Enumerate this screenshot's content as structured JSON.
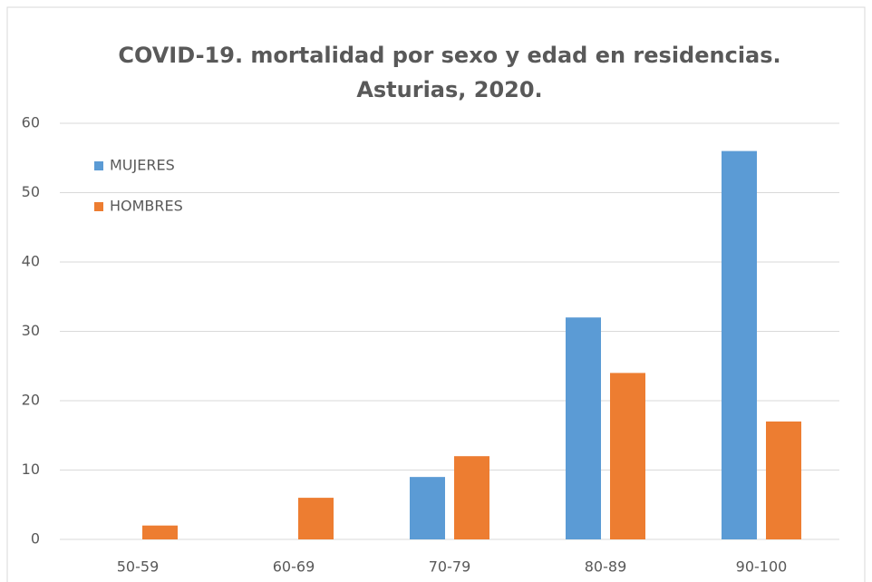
{
  "chart_data": {
    "type": "bar",
    "title": [
      "COVID-19. mortalidad por sexo y edad en residencias.",
      "Asturias, 2020."
    ],
    "categories": [
      "50-59",
      "60-69",
      "70-79",
      "80-89",
      "90-100"
    ],
    "series": [
      {
        "name": "MUJERES",
        "color": "#5b9bd5",
        "values": [
          0,
          0,
          9,
          32,
          56
        ]
      },
      {
        "name": "HOMBRES",
        "color": "#ed7d31",
        "values": [
          2,
          6,
          12,
          24,
          17
        ]
      }
    ],
    "ylim": [
      0,
      60
    ],
    "yticks": [
      0,
      10,
      20,
      30,
      40,
      50,
      60
    ],
    "grid": true,
    "legend": "top-left"
  }
}
